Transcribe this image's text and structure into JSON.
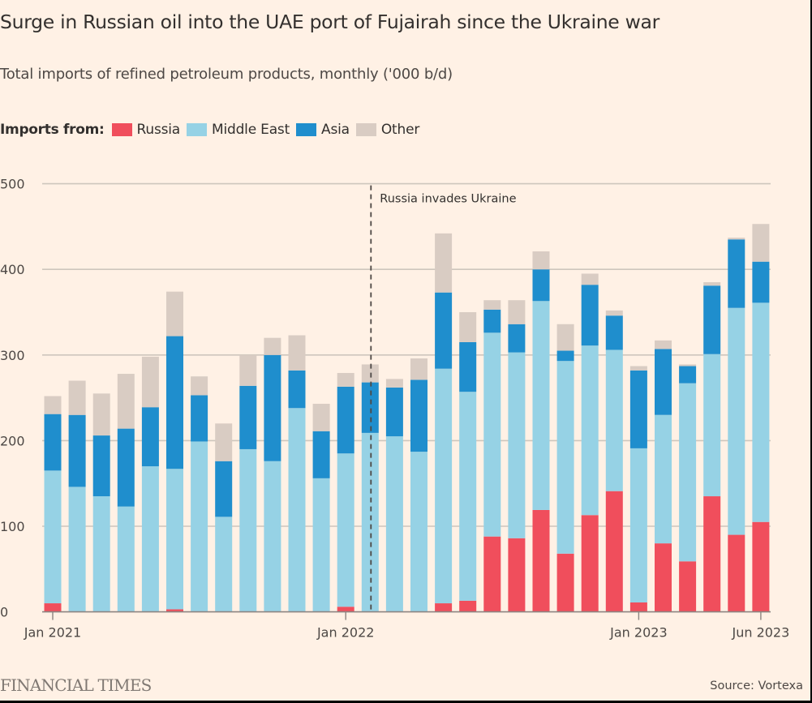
{
  "header": {
    "title": "Surge in Russian oil into the UAE port of Fujairah since the Ukraine war",
    "subtitle": "Total imports of refined petroleum products, monthly ('000 b/d)"
  },
  "legend": {
    "label": "Imports from:",
    "items": [
      {
        "name": "Russia",
        "color": "#f04e5c"
      },
      {
        "name": "Middle East",
        "color": "#96d2e5"
      },
      {
        "name": "Asia",
        "color": "#1f8ecd"
      },
      {
        "name": "Other",
        "color": "#d9ccc3"
      }
    ]
  },
  "footer": {
    "brand": "FINANCIAL TIMES",
    "source": "Source: Vortexa"
  },
  "chart_data": {
    "type": "bar",
    "stacked": true,
    "title": "Surge in Russian oil into the UAE port of Fujairah since the Ukraine war",
    "subtitle": "Total imports of refined petroleum products, monthly ('000 b/d)",
    "xlabel": "",
    "ylabel": "",
    "ylim": [
      0,
      500
    ],
    "yticks": [
      0,
      100,
      200,
      300,
      400,
      500
    ],
    "grid": true,
    "legend_position": "top-left",
    "categories": [
      "Jan 2021",
      "Feb 2021",
      "Mar 2021",
      "Apr 2021",
      "May 2021",
      "Jun 2021",
      "Jul 2021",
      "Aug 2021",
      "Sep 2021",
      "Oct 2021",
      "Nov 2021",
      "Dec 2021",
      "Jan 2022",
      "Feb 2022",
      "Mar 2022",
      "Apr 2022",
      "May 2022",
      "Jun 2022",
      "Jul 2022",
      "Aug 2022",
      "Sep 2022",
      "Oct 2022",
      "Nov 2022",
      "Dec 2022",
      "Jan 2023",
      "Feb 2023",
      "Mar 2023",
      "Apr 2023",
      "May 2023",
      "Jun 2023"
    ],
    "xtick_labels": [
      {
        "index": 0,
        "label": "Jan 2021"
      },
      {
        "index": 12,
        "label": "Jan 2022"
      },
      {
        "index": 24,
        "label": "Jan 2023"
      },
      {
        "index": 29,
        "label": "Jun 2023"
      }
    ],
    "series": [
      {
        "name": "Russia",
        "color": "#f04e5c",
        "values": [
          10,
          0,
          0,
          0,
          0,
          3,
          0,
          0,
          0,
          0,
          0,
          0,
          6,
          0,
          0,
          0,
          10,
          13,
          88,
          86,
          119,
          68,
          113,
          141,
          11,
          80,
          59,
          135,
          90,
          105
        ]
      },
      {
        "name": "Middle East",
        "color": "#96d2e5",
        "values": [
          155,
          146,
          135,
          123,
          170,
          164,
          199,
          111,
          190,
          176,
          238,
          156,
          179,
          209,
          205,
          187,
          274,
          244,
          238,
          217,
          244,
          225,
          198,
          165,
          180,
          150,
          208,
          166,
          265,
          256
        ]
      },
      {
        "name": "Asia",
        "color": "#1f8ecd",
        "values": [
          66,
          84,
          71,
          91,
          69,
          155,
          54,
          65,
          74,
          124,
          44,
          55,
          78,
          59,
          57,
          84,
          89,
          58,
          27,
          33,
          37,
          12,
          71,
          40,
          91,
          77,
          20,
          80,
          80,
          48
        ]
      },
      {
        "name": "Other",
        "color": "#d9ccc3",
        "values": [
          21,
          40,
          49,
          64,
          59,
          52,
          22,
          44,
          36,
          20,
          41,
          32,
          16,
          21,
          10,
          25,
          69,
          35,
          11,
          28,
          21,
          31,
          13,
          6,
          5,
          10,
          2,
          4,
          2,
          44
        ]
      }
    ],
    "annotations": [
      {
        "type": "vline",
        "at_category": "Feb 2022",
        "label": "Russia invades Ukraine",
        "style": "dashed"
      }
    ]
  }
}
